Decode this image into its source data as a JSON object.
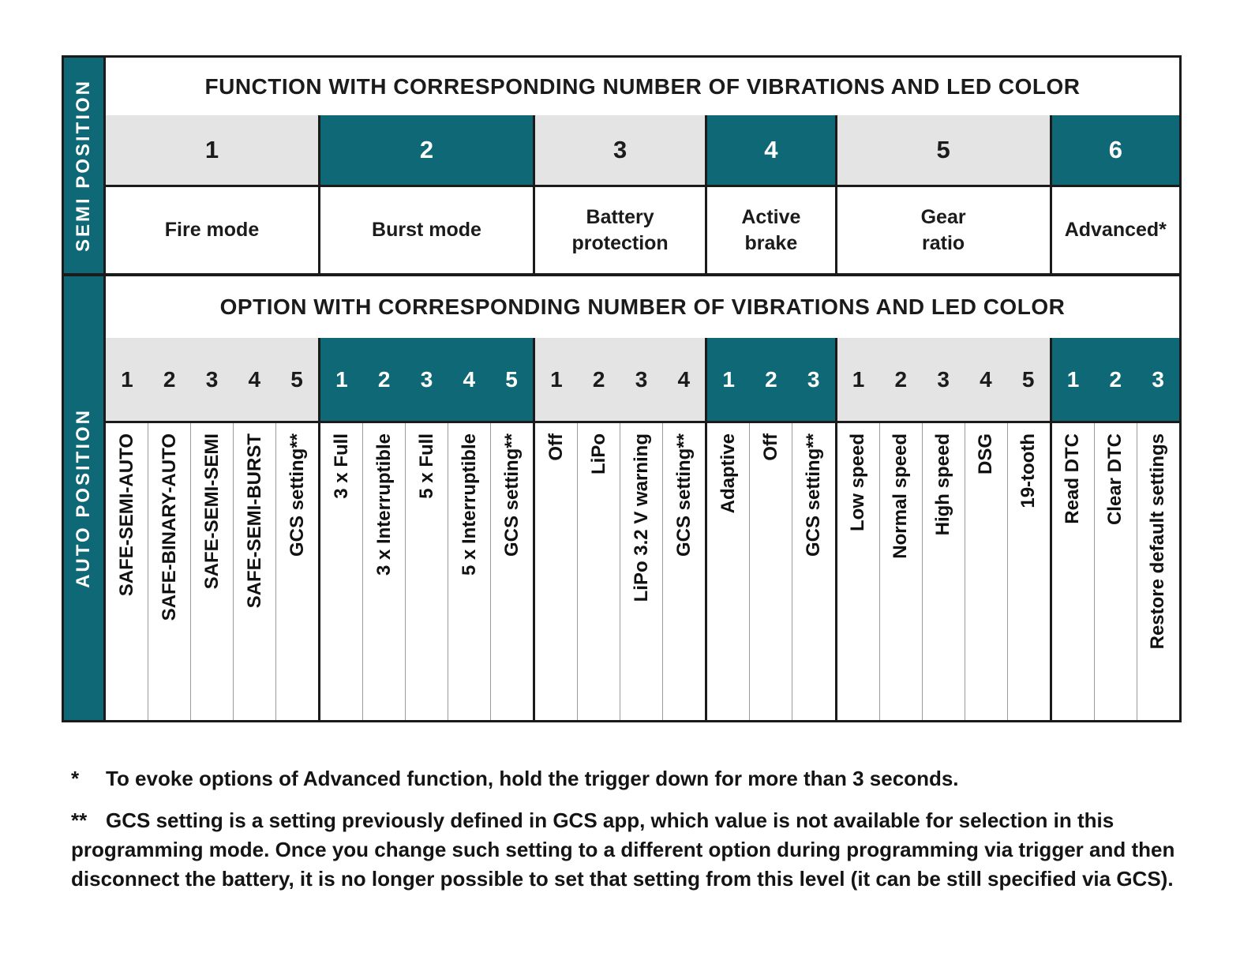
{
  "table": {
    "semi_label": "SEMI POSITION",
    "auto_label": "AUTO POSITION",
    "function_header": "FUNCTION WITH CORRESPONDING NUMBER OF VIBRATIONS AND LED COLOR",
    "option_header": "OPTION WITH CORRESPONDING NUMBER OF VIBRATIONS AND LED COLOR",
    "groups": [
      {
        "number": "1",
        "name": "Fire mode",
        "teal": false,
        "option_numbers": [
          "1",
          "2",
          "3",
          "4",
          "5"
        ],
        "options": [
          "SAFE-SEMI-AUTO",
          "SAFE-BINARY-AUTO",
          "SAFE-SEMI-SEMI",
          "SAFE-SEMI-BURST",
          "GCS setting**"
        ]
      },
      {
        "number": "2",
        "name": "Burst mode",
        "teal": true,
        "option_numbers": [
          "1",
          "2",
          "3",
          "4",
          "5"
        ],
        "options": [
          "3 x Full",
          "3 x Interruptible",
          "5 x Full",
          "5 x Interruptible",
          "GCS setting**"
        ]
      },
      {
        "number": "3",
        "name": "Battery\nprotection",
        "teal": false,
        "option_numbers": [
          "1",
          "2",
          "3",
          "4"
        ],
        "options": [
          "Off",
          "LiPo",
          "LiPo 3.2 V warning",
          "GCS setting**"
        ]
      },
      {
        "number": "4",
        "name": "Active\nbrake",
        "teal": true,
        "option_numbers": [
          "1",
          "2",
          "3"
        ],
        "options": [
          "Adaptive",
          "Off",
          "GCS setting**"
        ]
      },
      {
        "number": "5",
        "name": "Gear\nratio",
        "teal": false,
        "option_numbers": [
          "1",
          "2",
          "3",
          "4",
          "5"
        ],
        "options": [
          "Low speed",
          "Normal speed",
          "High speed",
          "DSG",
          "19-tooth"
        ]
      },
      {
        "number": "6",
        "name": "Advanced*",
        "teal": true,
        "option_numbers": [
          "1",
          "2",
          "3"
        ],
        "options": [
          "Read DTC",
          "Clear DTC",
          "Restore default settings"
        ]
      }
    ]
  },
  "footnotes": [
    {
      "marker": "*",
      "text": "To evoke options of Advanced function, hold the trigger down for more than 3 seconds."
    },
    {
      "marker": "**",
      "text": "GCS setting is a setting previously defined in GCS app, which value is not available for selection in this programming mode. Once you change such setting to a different option during programming via trigger and then disconnect the battery, it is no longer possible to set that setting from this level (it can be still specified via GCS)."
    }
  ],
  "colors": {
    "teal": "#0f6876",
    "gray": "#e4e4e4",
    "border": "#1b1b1b"
  }
}
